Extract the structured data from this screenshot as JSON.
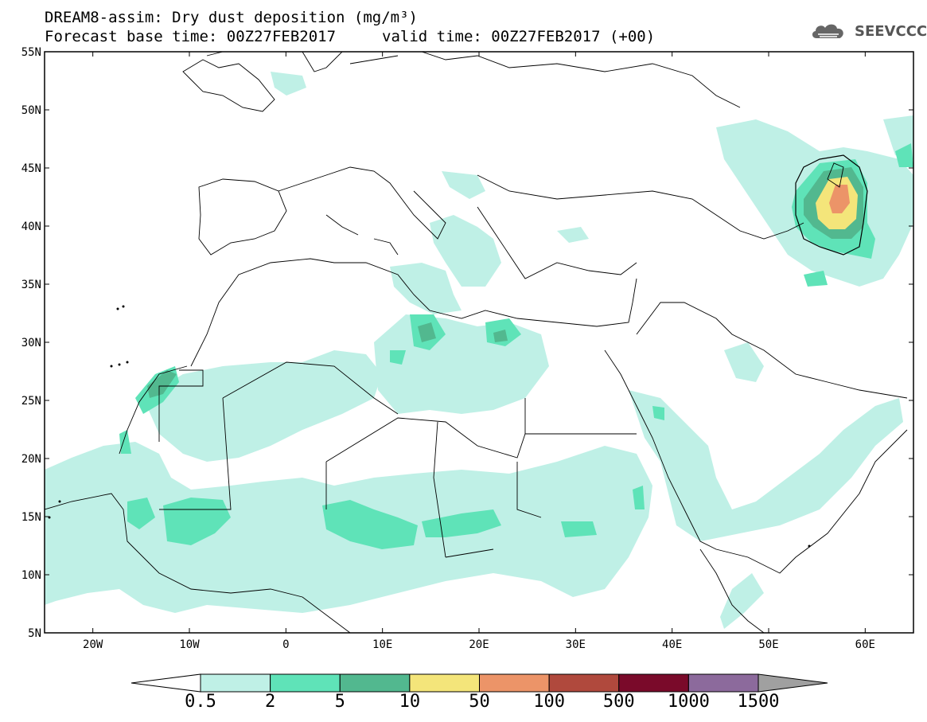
{
  "header": {
    "title": "DREAM8-assim: Dry dust deposition (mg/m³)",
    "base_time": "Forecast base time: 00Z27FEB2017",
    "valid_time": "valid time: 00Z27FEB2017 (+00)",
    "logo_text": "SEEVCCC"
  },
  "map": {
    "lon_labels": [
      "20W",
      "10W",
      "0",
      "10E",
      "20E",
      "30E",
      "40E",
      "50E",
      "60E"
    ],
    "lat_labels": [
      "55N",
      "50N",
      "45N",
      "40N",
      "35N",
      "30N",
      "25N",
      "20N",
      "15N",
      "10N",
      "5N"
    ],
    "lon_values": [
      -20,
      -10,
      0,
      10,
      20,
      30,
      40,
      50,
      60
    ],
    "lat_values": [
      55,
      50,
      45,
      40,
      35,
      30,
      25,
      20,
      15,
      10,
      5
    ],
    "lon_range": [
      -25,
      65
    ],
    "lat_range": [
      5,
      55
    ]
  },
  "legend": {
    "labels": [
      "0.5",
      "2",
      "5",
      "10",
      "50",
      "100",
      "500",
      "1000",
      "1500"
    ],
    "colors": [
      "#ffffff",
      "#bff0e6",
      "#5fe3b8",
      "#52b88f",
      "#f4e57a",
      "#ec9468",
      "#b0493d",
      "#7a0a2a",
      "#8c6a9c",
      "#a0a0a0"
    ]
  }
}
